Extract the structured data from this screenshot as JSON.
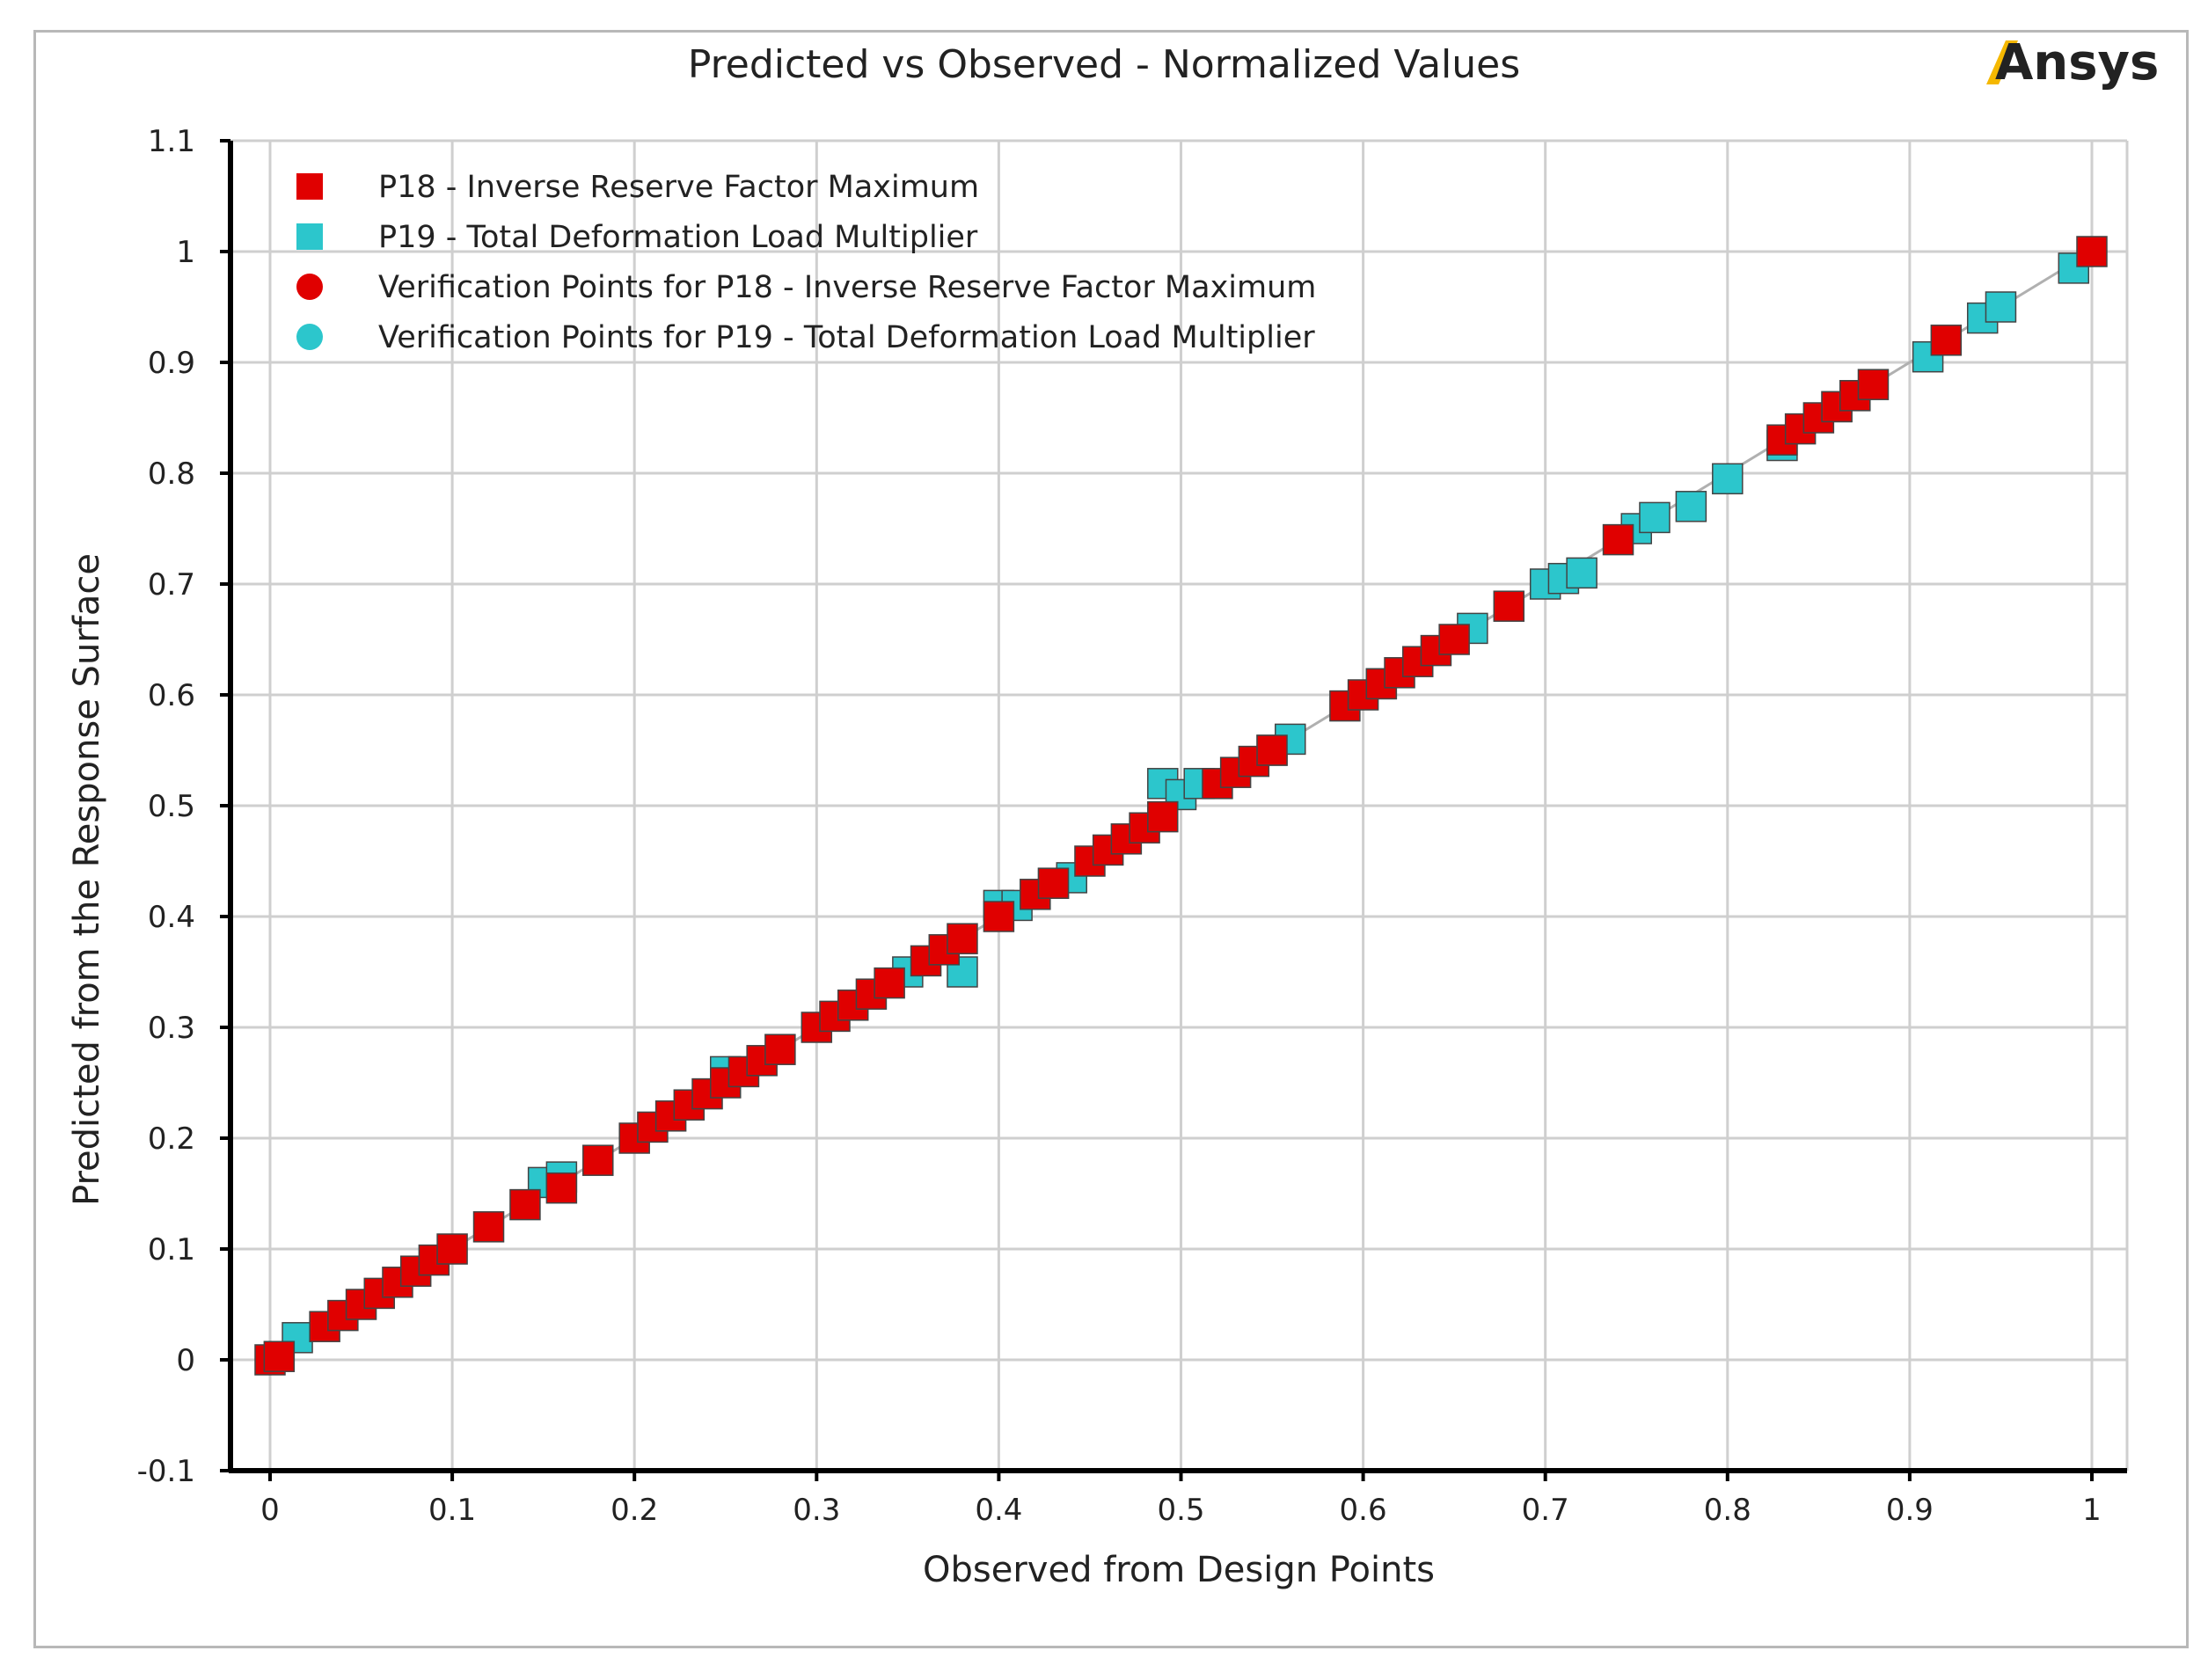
{
  "brand": {
    "logo_text": "Ansys",
    "logo_accent": "#f5b800",
    "logo_color": "#111111"
  },
  "colors": {
    "p18": "#e00000",
    "p19": "#2cc6cc",
    "grid": "#cfcfcf",
    "axis": "#000000",
    "fit_line": "#b0b0b0"
  },
  "chart_data": {
    "type": "scatter",
    "title": "Predicted vs Observed - Normalized Values",
    "xlabel": "Observed from Design Points",
    "ylabel": "Predicted from the Response Surface",
    "xlim": [
      0,
      1
    ],
    "ylim": [
      -0.1,
      1.1
    ],
    "xticks": [
      "0",
      "0.1",
      "0.2",
      "0.3",
      "0.4",
      "0.5",
      "0.6",
      "0.7",
      "0.8",
      "0.9",
      "1"
    ],
    "yticks": [
      "-0.1",
      "0",
      "0.1",
      "0.2",
      "0.3",
      "0.4",
      "0.5",
      "0.6",
      "0.7",
      "0.8",
      "0.9",
      "1",
      "1.1"
    ],
    "grid": true,
    "legend_position": "top-left",
    "reference_line": [
      [
        0,
        0
      ],
      [
        1,
        1
      ]
    ],
    "series": [
      {
        "name": "P18 - Inverse Reserve Factor Maximum",
        "marker": "square",
        "color": "#e00000",
        "points": [
          [
            0.0,
            0.0
          ],
          [
            0.005,
            0.003
          ],
          [
            0.03,
            0.03
          ],
          [
            0.04,
            0.04
          ],
          [
            0.05,
            0.05
          ],
          [
            0.06,
            0.06
          ],
          [
            0.07,
            0.07
          ],
          [
            0.08,
            0.08
          ],
          [
            0.09,
            0.09
          ],
          [
            0.1,
            0.1
          ],
          [
            0.12,
            0.12
          ],
          [
            0.14,
            0.14
          ],
          [
            0.16,
            0.155
          ],
          [
            0.18,
            0.18
          ],
          [
            0.2,
            0.2
          ],
          [
            0.21,
            0.21
          ],
          [
            0.22,
            0.22
          ],
          [
            0.23,
            0.23
          ],
          [
            0.24,
            0.24
          ],
          [
            0.25,
            0.25
          ],
          [
            0.26,
            0.26
          ],
          [
            0.27,
            0.27
          ],
          [
            0.28,
            0.28
          ],
          [
            0.3,
            0.3
          ],
          [
            0.31,
            0.31
          ],
          [
            0.32,
            0.32
          ],
          [
            0.33,
            0.33
          ],
          [
            0.34,
            0.34
          ],
          [
            0.36,
            0.36
          ],
          [
            0.37,
            0.37
          ],
          [
            0.38,
            0.38
          ],
          [
            0.4,
            0.4
          ],
          [
            0.42,
            0.42
          ],
          [
            0.43,
            0.43
          ],
          [
            0.45,
            0.45
          ],
          [
            0.46,
            0.46
          ],
          [
            0.47,
            0.47
          ],
          [
            0.48,
            0.48
          ],
          [
            0.49,
            0.49
          ],
          [
            0.52,
            0.52
          ],
          [
            0.53,
            0.53
          ],
          [
            0.54,
            0.54
          ],
          [
            0.55,
            0.55
          ],
          [
            0.59,
            0.59
          ],
          [
            0.6,
            0.6
          ],
          [
            0.61,
            0.61
          ],
          [
            0.62,
            0.62
          ],
          [
            0.63,
            0.63
          ],
          [
            0.64,
            0.64
          ],
          [
            0.65,
            0.65
          ],
          [
            0.68,
            0.68
          ],
          [
            0.74,
            0.74
          ],
          [
            0.83,
            0.83
          ],
          [
            0.84,
            0.84
          ],
          [
            0.85,
            0.85
          ],
          [
            0.86,
            0.86
          ],
          [
            0.87,
            0.87
          ],
          [
            0.88,
            0.88
          ],
          [
            0.92,
            0.92
          ],
          [
            1.0,
            1.0
          ]
        ]
      },
      {
        "name": "P19 - Total Deformation Load Multiplier",
        "marker": "square",
        "color": "#2cc6cc",
        "points": [
          [
            0.015,
            0.02
          ],
          [
            0.15,
            0.16
          ],
          [
            0.16,
            0.165
          ],
          [
            0.25,
            0.26
          ],
          [
            0.35,
            0.35
          ],
          [
            0.38,
            0.35
          ],
          [
            0.4,
            0.41
          ],
          [
            0.41,
            0.41
          ],
          [
            0.43,
            0.43
          ],
          [
            0.44,
            0.435
          ],
          [
            0.49,
            0.52
          ],
          [
            0.5,
            0.51
          ],
          [
            0.51,
            0.52
          ],
          [
            0.55,
            0.55
          ],
          [
            0.56,
            0.56
          ],
          [
            0.61,
            0.61
          ],
          [
            0.66,
            0.66
          ],
          [
            0.7,
            0.7
          ],
          [
            0.71,
            0.705
          ],
          [
            0.72,
            0.71
          ],
          [
            0.75,
            0.75
          ],
          [
            0.76,
            0.76
          ],
          [
            0.78,
            0.77
          ],
          [
            0.8,
            0.795
          ],
          [
            0.83,
            0.825
          ],
          [
            0.86,
            0.86
          ],
          [
            0.87,
            0.87
          ],
          [
            0.91,
            0.905
          ],
          [
            0.94,
            0.94
          ],
          [
            0.95,
            0.95
          ],
          [
            0.99,
            0.985
          ]
        ]
      },
      {
        "name": "Verification Points for P18 - Inverse Reserve Factor Maximum",
        "marker": "circle",
        "color": "#e00000",
        "points": []
      },
      {
        "name": "Verification Points for P19 - Total Deformation Load Multiplier",
        "marker": "circle",
        "color": "#2cc6cc",
        "points": []
      }
    ]
  }
}
